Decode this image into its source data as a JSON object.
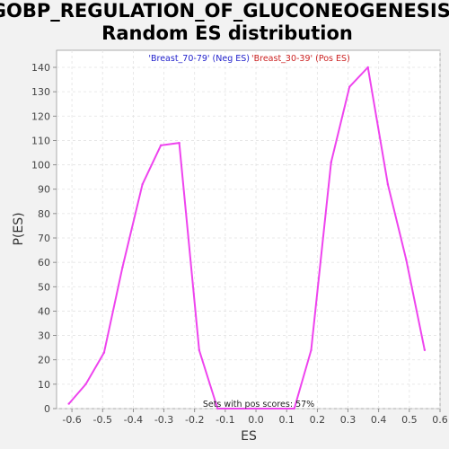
{
  "chart_data": {
    "type": "line",
    "title_line1": "GOBP_REGULATION_OF_GLUCONEOGENESIS:",
    "title_line2": "Random ES distribution",
    "xlabel": "ES",
    "ylabel": "P(ES)",
    "xlim": [
      -0.65,
      0.6
    ],
    "ylim": [
      0,
      147
    ],
    "x_ticks": [
      -0.6,
      -0.5,
      -0.4,
      -0.3,
      -0.2,
      -0.1,
      0.0,
      0.1,
      0.2,
      0.3,
      0.4,
      0.5,
      0.6
    ],
    "x_tick_labels": [
      "-0.6",
      "-0.5",
      "-0.4",
      "-0.3",
      "-0.2",
      "-0.1",
      "0.0",
      "0.1",
      "0.2",
      "0.3",
      "0.4",
      "0.5",
      "0.6"
    ],
    "y_ticks": [
      0,
      10,
      20,
      30,
      40,
      50,
      60,
      70,
      80,
      90,
      100,
      110,
      120,
      130,
      140
    ],
    "grid": true,
    "legend_neg": "'Breast_70-79' (Neg ES)",
    "legend_pos": "'Breast_30-39' (Pos ES)",
    "annotation": "Sets with pos scores: 57%",
    "series": [
      {
        "color": "#ee44ee",
        "x": [
          -0.61,
          -0.555,
          -0.495,
          -0.435,
          -0.37,
          -0.31,
          -0.25,
          -0.185,
          -0.125,
          0.125,
          0.18,
          0.245,
          0.305,
          0.365,
          0.43,
          0.49,
          0.55
        ],
        "y": [
          2,
          10,
          23,
          58,
          92,
          108,
          109,
          24,
          0,
          0,
          24,
          101,
          132,
          140,
          92,
          61,
          24
        ]
      }
    ],
    "colors": {
      "plot_bg": "#ffffff",
      "page_bg": "#f2f2f2",
      "grid": "#e2e2e2",
      "neg_legend": "#2222cc",
      "pos_legend": "#cc2222",
      "line": "#ee44ee"
    }
  }
}
